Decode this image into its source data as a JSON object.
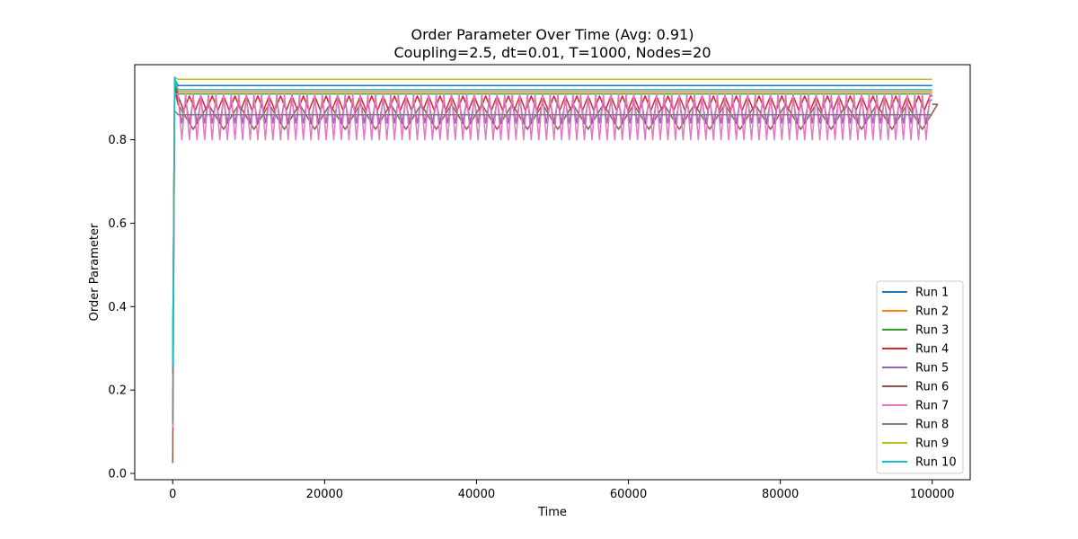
{
  "chart_data": {
    "type": "line",
    "title": "Order Parameter Over Time (Avg: 0.91)",
    "subtitle": "Coupling=2.5, dt=0.01, T=1000, Nodes=20",
    "xlabel": "Time",
    "ylabel": "Order Parameter",
    "xlim": [
      -5000,
      105000
    ],
    "ylim": [
      -0.015,
      0.98
    ],
    "xticks": [
      0,
      20000,
      40000,
      60000,
      80000,
      100000
    ],
    "xtick_labels": [
      "0",
      "20000",
      "40000",
      "60000",
      "80000",
      "100000"
    ],
    "yticks": [
      0.0,
      0.2,
      0.4,
      0.6,
      0.8
    ],
    "ytick_labels": [
      "0.0",
      "0.2",
      "0.4",
      "0.6",
      "0.8"
    ],
    "grid": false,
    "legend_position": "lower-right",
    "x_range": [
      0,
      100000
    ],
    "series": [
      {
        "name": "Run 1",
        "color": "#1f77b4",
        "start": 0.26,
        "peak": 0.945,
        "base": 0.93,
        "osc_low": 0.93,
        "osc_period": 0
      },
      {
        "name": "Run 2",
        "color": "#ff7f0e",
        "start": 0.26,
        "peak": 0.94,
        "base": 0.915,
        "osc_low": 0.915,
        "osc_period": 0
      },
      {
        "name": "Run 3",
        "color": "#2ca02c",
        "start": 0.26,
        "peak": 0.93,
        "base": 0.91,
        "osc_low": 0.91,
        "osc_period": 0
      },
      {
        "name": "Run 4",
        "color": "#d62728",
        "start": 0.24,
        "peak": 0.925,
        "base": 0.905,
        "osc_low": 0.87,
        "osc_period": 1500
      },
      {
        "name": "Run 5",
        "color": "#9467bd",
        "start": 0.24,
        "peak": 0.92,
        "base": 0.895,
        "osc_low": 0.84,
        "osc_period": 1000
      },
      {
        "name": "Run 6",
        "color": "#8c564b",
        "start": 0.025,
        "peak": 0.92,
        "base": 0.885,
        "osc_low": 0.825,
        "osc_period": 4000
      },
      {
        "name": "Run 7",
        "color": "#e377c2",
        "start": 0.11,
        "peak": 0.91,
        "base": 0.91,
        "osc_low": 0.8,
        "osc_period": 1000
      },
      {
        "name": "Run 8",
        "color": "#7f7f7f",
        "start": 0.12,
        "peak": 0.87,
        "base": 0.86,
        "osc_low": 0.86,
        "osc_period": 0
      },
      {
        "name": "Run 9",
        "color": "#bcbd22",
        "start": 0.26,
        "peak": 0.95,
        "base": 0.945,
        "osc_low": 0.945,
        "osc_period": 0
      },
      {
        "name": "Run 10",
        "color": "#17becf",
        "start": 0.26,
        "peak": 0.95,
        "base": 0.92,
        "osc_low": 0.92,
        "osc_period": 0
      }
    ]
  }
}
